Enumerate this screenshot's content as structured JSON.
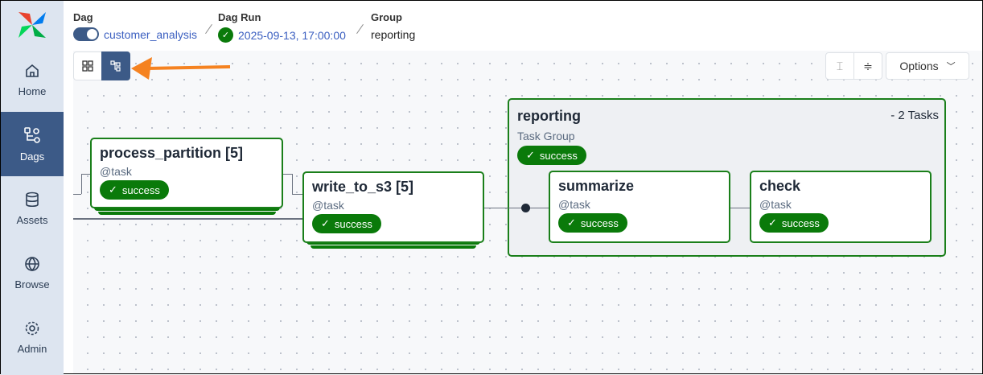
{
  "sidebar": {
    "items": [
      {
        "label": "Home",
        "icon": "home-icon"
      },
      {
        "label": "Dags",
        "icon": "dag-icon",
        "active": true
      },
      {
        "label": "Assets",
        "icon": "database-icon"
      },
      {
        "label": "Browse",
        "icon": "globe-icon"
      },
      {
        "label": "Admin",
        "icon": "gear-icon"
      }
    ]
  },
  "breadcrumb": {
    "dag_label": "Dag",
    "dag_value": "customer_analysis",
    "run_label": "Dag Run",
    "run_value": "2025-09-13, 17:00:00",
    "group_label": "Group",
    "group_value": "reporting"
  },
  "toolbar": {
    "options_label": "Options"
  },
  "nodes": {
    "process_partition": {
      "title": "process_partition [5]",
      "type": "@task",
      "status": "success"
    },
    "write_to_s3": {
      "title": "write_to_s3 [5]",
      "type": "@task",
      "status": "success"
    },
    "summarize": {
      "title": "summarize",
      "type": "@task",
      "status": "success"
    },
    "check": {
      "title": "check",
      "type": "@task",
      "status": "success"
    }
  },
  "group": {
    "title": "reporting",
    "subtitle": "Task Group",
    "count": "- 2 Tasks",
    "status": "success"
  },
  "colors": {
    "success": "#0a7a0a",
    "accent": "#3c5a87",
    "arrow": "#f58220"
  }
}
